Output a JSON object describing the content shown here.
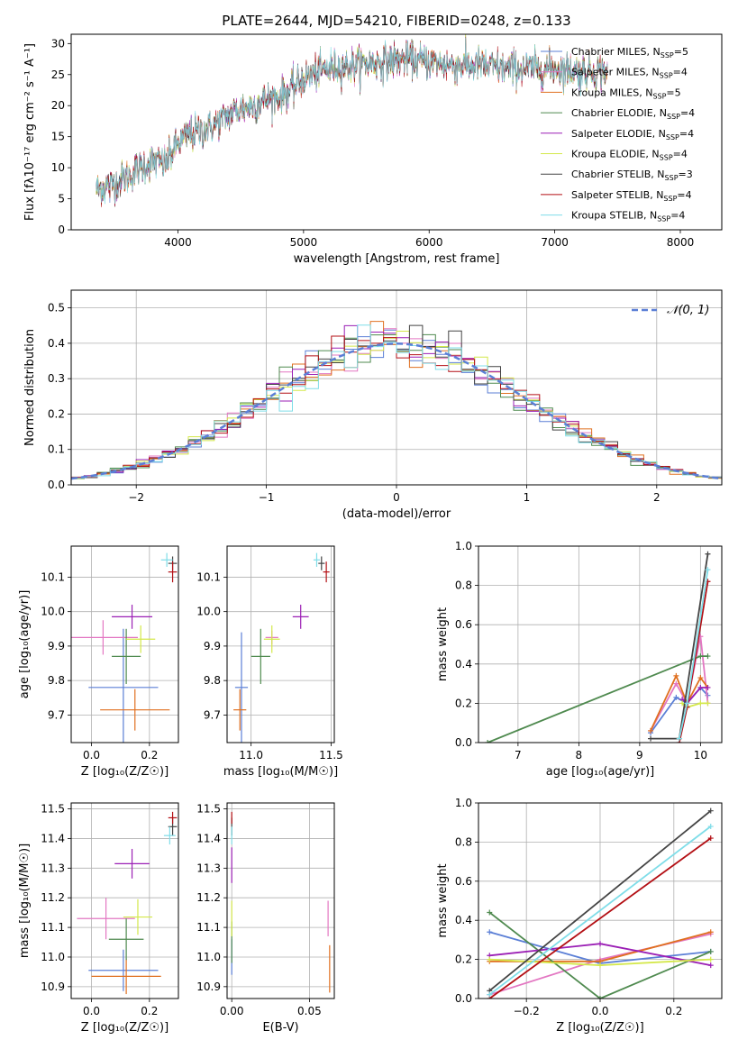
{
  "page_title": "PLATE=2644, MJD=54210, FIBERID=0248, z=0.133",
  "colors": {
    "Chabrier MILES": "#5b7fd6",
    "Salpeter MILES": "#e377c2",
    "Kroupa MILES": "#e07020",
    "Chabrier ELODIE": "#4f8a4f",
    "Salpeter ELODIE": "#9b1fb5",
    "Kroupa ELODIE": "#d4e84a",
    "Chabrier STELIB": "#444444",
    "Salpeter STELIB": "#b30f14",
    "Kroupa STELIB": "#7fdde8"
  },
  "chart_data": [
    {
      "id": "spectrum",
      "type": "line",
      "title": "PLATE=2644, MJD=54210, FIBERID=0248, z=0.133",
      "xlabel": "wavelength [Angstrom, rest frame]",
      "ylabel": "Flux [fλ10⁻¹⁷ erg cm⁻² s⁻¹ A⁻¹]",
      "xlim": [
        3150,
        8330
      ],
      "ylim": [
        0,
        31.5
      ],
      "xticks": [
        "4000",
        "5000",
        "6000",
        "7000",
        "8000"
      ],
      "yticks": [
        "0",
        "5",
        "10",
        "15",
        "20",
        "25",
        "30"
      ],
      "legend_position": "top-right",
      "grid": false,
      "series": [
        {
          "name": "Chabrier MILES, N_SSP=5",
          "legend": "Chabrier MILES, N",
          "sub": "SSP",
          "suffix": "=5"
        },
        {
          "name": "Salpeter MILES, N_SSP=4",
          "legend": "Salpeter MILES, N",
          "sub": "SSP",
          "suffix": "=4"
        },
        {
          "name": "Kroupa MILES, N_SSP=5",
          "legend": "Kroupa MILES, N",
          "sub": "SSP",
          "suffix": "=5"
        },
        {
          "name": "Chabrier ELODIE, N_SSP=4",
          "legend": "Chabrier ELODIE, N",
          "sub": "SSP",
          "suffix": "=4"
        },
        {
          "name": "Salpeter ELODIE, N_SSP=4",
          "legend": "Salpeter ELODIE, N",
          "sub": "SSP",
          "suffix": "=4"
        },
        {
          "name": "Kroupa ELODIE, N_SSP=4",
          "legend": "Kroupa ELODIE, N",
          "sub": "SSP",
          "suffix": "=4"
        },
        {
          "name": "Chabrier STELIB, N_SSP=3",
          "legend": "Chabrier STELIB, N",
          "sub": "SSP",
          "suffix": "=3"
        },
        {
          "name": "Salpeter STELIB, N_SSP=4",
          "legend": "Salpeter STELIB, N",
          "sub": "SSP",
          "suffix": "=4"
        },
        {
          "name": "Kroupa STELIB, N_SSP=4",
          "legend": "Kroupa STELIB, N",
          "sub": "SSP",
          "suffix": "=4"
        }
      ],
      "continuum": {
        "x": [
          3350,
          3500,
          3600,
          3700,
          3800,
          3900,
          4000,
          4100,
          4200,
          4300,
          4400,
          4500,
          4600,
          4700,
          4800,
          4900,
          5000,
          5200,
          5400,
          5600,
          5800,
          6000,
          6200,
          6400,
          6600,
          6800,
          7000,
          7200,
          7400
        ],
        "y": [
          6.5,
          7.5,
          8.5,
          10.0,
          11.0,
          10.5,
          14.0,
          15.5,
          16.0,
          17.0,
          18.5,
          19.5,
          20.0,
          21.0,
          21.5,
          22.5,
          24.5,
          26.0,
          26.5,
          27.0,
          27.5,
          27.0,
          26.5,
          26.5,
          26.0,
          26.0,
          26.0,
          25.5,
          25.5
        ]
      }
    },
    {
      "id": "residuals",
      "type": "bar",
      "xlabel": "(data-model)/error",
      "ylabel": "Normed distribution",
      "xlim": [
        -2.5,
        2.5
      ],
      "ylim": [
        0,
        0.55
      ],
      "xticks": [
        "−2",
        "−1",
        "0",
        "1",
        "2"
      ],
      "yticks": [
        "0.0",
        "0.1",
        "0.2",
        "0.3",
        "0.4",
        "0.5"
      ],
      "legend": "𝒩(0, 1)",
      "legend_position": "top-right",
      "grid": true,
      "bin_width": 0.1,
      "reference": "N(0,1) gaussian"
    },
    {
      "id": "age_vs_Z",
      "type": "scatter",
      "xlabel": "Z [log₁₀(Z/Z☉)]",
      "ylabel": "age  [log₁₀(age/yr)]",
      "xlim": [
        -0.07,
        0.3
      ],
      "ylim": [
        9.62,
        10.19
      ],
      "xticks": [
        "0.0",
        "0.2"
      ],
      "yticks": [
        "9.7",
        "9.8",
        "9.9",
        "10.0",
        "10.1"
      ],
      "grid": true,
      "points": [
        {
          "series": "Chabrier MILES",
          "x": 0.11,
          "y": 9.78,
          "xerr": 0.12,
          "yerr": 0.17
        },
        {
          "series": "Salpeter MILES",
          "x": 0.04,
          "y": 9.925,
          "xerr": 0.12,
          "yerr": 0.05
        },
        {
          "series": "Kroupa MILES",
          "x": 0.15,
          "y": 9.715,
          "xerr": 0.12,
          "yerr": 0.06
        },
        {
          "series": "Chabrier ELODIE",
          "x": 0.12,
          "y": 9.87,
          "xerr": 0.05,
          "yerr": 0.08
        },
        {
          "series": "Salpeter ELODIE",
          "x": 0.14,
          "y": 9.985,
          "xerr": 0.07,
          "yerr": 0.035
        },
        {
          "series": "Kroupa ELODIE",
          "x": 0.17,
          "y": 9.92,
          "xerr": 0.05,
          "yerr": 0.04
        },
        {
          "series": "Chabrier STELIB",
          "x": 0.28,
          "y": 10.14,
          "xerr": 0.015,
          "yerr": 0.02
        },
        {
          "series": "Salpeter STELIB",
          "x": 0.28,
          "y": 10.115,
          "xerr": 0.015,
          "yerr": 0.03
        },
        {
          "series": "Kroupa STELIB",
          "x": 0.26,
          "y": 10.15,
          "xerr": 0.02,
          "yerr": 0.02
        }
      ]
    },
    {
      "id": "age_vs_mass",
      "type": "scatter",
      "xlabel": "mass [log₁₀(M/M☉)]",
      "ylabel": "",
      "xlim": [
        10.85,
        11.52
      ],
      "ylim": [
        9.62,
        10.19
      ],
      "xticks": [
        "11.0",
        "11.5"
      ],
      "yticks": [
        "9.7",
        "9.8",
        "9.9",
        "10.0",
        "10.1"
      ],
      "grid": true,
      "points": [
        {
          "series": "Chabrier MILES",
          "x": 10.94,
          "y": 9.78,
          "xerr": 0.04,
          "yerr": 0.16
        },
        {
          "series": "Salpeter MILES",
          "x": 11.13,
          "y": 9.925,
          "xerr": 0.04,
          "yerr": 0.02
        },
        {
          "series": "Kroupa MILES",
          "x": 10.93,
          "y": 9.715,
          "xerr": 0.04,
          "yerr": 0.06
        },
        {
          "series": "Chabrier ELODIE",
          "x": 11.06,
          "y": 9.87,
          "xerr": 0.06,
          "yerr": 0.08
        },
        {
          "series": "Salpeter ELODIE",
          "x": 11.31,
          "y": 9.985,
          "xerr": 0.05,
          "yerr": 0.035
        },
        {
          "series": "Kroupa ELODIE",
          "x": 11.13,
          "y": 9.92,
          "xerr": 0.05,
          "yerr": 0.04
        },
        {
          "series": "Chabrier STELIB",
          "x": 11.44,
          "y": 10.14,
          "xerr": 0.02,
          "yerr": 0.02
        },
        {
          "series": "Salpeter STELIB",
          "x": 11.47,
          "y": 10.115,
          "xerr": 0.02,
          "yerr": 0.03
        },
        {
          "series": "Kroupa STELIB",
          "x": 11.41,
          "y": 10.15,
          "xerr": 0.02,
          "yerr": 0.02
        }
      ]
    },
    {
      "id": "weight_vs_age",
      "type": "line",
      "xlabel": "age  [log₁₀(age/yr)]",
      "ylabel": "mass weight",
      "xlim": [
        6.35,
        10.35
      ],
      "ylim": [
        0,
        1.0
      ],
      "xticks": [
        "7",
        "8",
        "9",
        "10"
      ],
      "yticks": [
        "0.0",
        "0.2",
        "0.4",
        "0.6",
        "0.8",
        "1.0"
      ],
      "grid": true,
      "series": [
        {
          "name": "Chabrier MILES",
          "x": [
            9.18,
            9.6,
            9.78,
            10.0,
            10.12
          ],
          "y": [
            0.05,
            0.23,
            0.2,
            0.28,
            0.24
          ]
        },
        {
          "name": "Salpeter MILES",
          "x": [
            9.18,
            9.6,
            9.78,
            10.0,
            10.12
          ],
          "y": [
            0.06,
            0.3,
            0.2,
            0.54,
            0.2
          ]
        },
        {
          "name": "Kroupa MILES",
          "x": [
            9.18,
            9.6,
            9.78,
            10.0,
            10.12
          ],
          "y": [
            0.06,
            0.34,
            0.2,
            0.33,
            0.28
          ]
        },
        {
          "name": "Chabrier ELODIE",
          "x": [
            6.5,
            10.0,
            10.12
          ],
          "y": [
            0.0,
            0.44,
            0.44
          ]
        },
        {
          "name": "Salpeter ELODIE",
          "x": [
            9.7,
            9.78,
            10.0,
            10.12
          ],
          "y": [
            0.22,
            0.2,
            0.28,
            0.28
          ]
        },
        {
          "name": "Kroupa ELODIE",
          "x": [
            9.7,
            9.78,
            10.0,
            10.12
          ],
          "y": [
            0.2,
            0.18,
            0.2,
            0.2
          ]
        },
        {
          "name": "Chabrier STELIB",
          "x": [
            9.18,
            9.65,
            10.12
          ],
          "y": [
            0.02,
            0.02,
            0.96
          ]
        },
        {
          "name": "Salpeter STELIB",
          "x": [
            9.65,
            9.78,
            10.12
          ],
          "y": [
            0.0,
            0.18,
            0.82
          ]
        },
        {
          "name": "Kroupa STELIB",
          "x": [
            9.65,
            9.78,
            10.12
          ],
          "y": [
            0.02,
            0.2,
            0.88
          ]
        }
      ]
    },
    {
      "id": "mass_vs_Z",
      "type": "scatter",
      "xlabel": "Z [log₁₀(Z/Z☉)]",
      "ylabel": "mass [log₁₀(M/M☉)]",
      "xlim": [
        -0.07,
        0.3
      ],
      "ylim": [
        10.86,
        11.52
      ],
      "xticks": [
        "0.0",
        "0.2"
      ],
      "yticks": [
        "10.9",
        "11.0",
        "11.1",
        "11.2",
        "11.3",
        "11.4",
        "11.5"
      ],
      "grid": true,
      "points": [
        {
          "series": "Chabrier MILES",
          "x": 0.11,
          "y": 10.955,
          "xerr": 0.12,
          "yerr": 0.07
        },
        {
          "series": "Salpeter MILES",
          "x": 0.05,
          "y": 11.13,
          "xerr": 0.1,
          "yerr": 0.07
        },
        {
          "series": "Kroupa MILES",
          "x": 0.12,
          "y": 10.935,
          "xerr": 0.12,
          "yerr": 0.06
        },
        {
          "series": "Chabrier ELODIE",
          "x": 0.12,
          "y": 11.06,
          "xerr": 0.06,
          "yerr": 0.07
        },
        {
          "series": "Salpeter ELODIE",
          "x": 0.14,
          "y": 11.315,
          "xerr": 0.06,
          "yerr": 0.05
        },
        {
          "series": "Kroupa ELODIE",
          "x": 0.16,
          "y": 11.135,
          "xerr": 0.05,
          "yerr": 0.06
        },
        {
          "series": "Chabrier STELIB",
          "x": 0.28,
          "y": 11.44,
          "xerr": 0.015,
          "yerr": 0.03
        },
        {
          "series": "Salpeter STELIB",
          "x": 0.28,
          "y": 11.47,
          "xerr": 0.015,
          "yerr": 0.02
        },
        {
          "series": "Kroupa STELIB",
          "x": 0.27,
          "y": 11.41,
          "xerr": 0.02,
          "yerr": 0.03
        }
      ]
    },
    {
      "id": "mass_vs_ebv",
      "type": "scatter",
      "xlabel": "E(B-V)",
      "ylabel": "",
      "xlim": [
        -0.003,
        0.066
      ],
      "ylim": [
        10.86,
        11.52
      ],
      "xticks": [
        "0.00",
        "0.05"
      ],
      "yticks": [
        "10.9",
        "11.0",
        "11.1",
        "11.2",
        "11.3",
        "11.4",
        "11.5"
      ],
      "grid": true,
      "points": [
        {
          "series": "Chabrier MILES",
          "x": 0.0,
          "y": 11.0,
          "xerr": 0.0,
          "yerr": 0.06
        },
        {
          "series": "Salpeter MILES",
          "x": 0.062,
          "y": 11.13,
          "xerr": 0.0,
          "yerr": 0.06
        },
        {
          "series": "Kroupa MILES",
          "x": 0.063,
          "y": 10.96,
          "xerr": 0.0,
          "yerr": 0.08
        },
        {
          "series": "Chabrier ELODIE",
          "x": 0.0,
          "y": 11.05,
          "xerr": 0.0,
          "yerr": 0.07
        },
        {
          "series": "Salpeter ELODIE",
          "x": 0.0,
          "y": 11.31,
          "xerr": 0.0,
          "yerr": 0.06
        },
        {
          "series": "Kroupa ELODIE",
          "x": 0.0,
          "y": 11.13,
          "xerr": 0.0,
          "yerr": 0.06
        },
        {
          "series": "Chabrier STELIB",
          "x": 0.0,
          "y": 11.44,
          "xerr": 0.0,
          "yerr": 0.03
        },
        {
          "series": "Salpeter STELIB",
          "x": 0.0,
          "y": 11.47,
          "xerr": 0.0,
          "yerr": 0.02
        },
        {
          "series": "Kroupa STELIB",
          "x": 0.0,
          "y": 11.41,
          "xerr": 0.0,
          "yerr": 0.03
        }
      ]
    },
    {
      "id": "weight_vs_Z",
      "type": "line",
      "xlabel": "Z [log₁₀(Z/Z☉)]",
      "ylabel": "mass weight",
      "xlim": [
        -0.33,
        0.33
      ],
      "ylim": [
        0,
        1.0
      ],
      "xticks": [
        "−0.2",
        "0.0",
        "0.2"
      ],
      "yticks": [
        "0.0",
        "0.2",
        "0.4",
        "0.6",
        "0.8",
        "1.0"
      ],
      "grid": true,
      "series": [
        {
          "name": "Chabrier MILES",
          "x": [
            -0.3,
            0.0,
            0.3
          ],
          "y": [
            0.34,
            0.18,
            0.24
          ]
        },
        {
          "name": "Salpeter MILES",
          "x": [
            -0.3,
            0.0,
            0.3
          ],
          "y": [
            0.02,
            0.2,
            0.33
          ]
        },
        {
          "name": "Kroupa MILES",
          "x": [
            -0.3,
            0.0,
            0.3
          ],
          "y": [
            0.19,
            0.19,
            0.34
          ]
        },
        {
          "name": "Chabrier ELODIE",
          "x": [
            -0.3,
            0.0,
            0.3
          ],
          "y": [
            0.44,
            0.0,
            0.24
          ]
        },
        {
          "name": "Salpeter ELODIE",
          "x": [
            -0.3,
            0.0,
            0.3
          ],
          "y": [
            0.22,
            0.28,
            0.17
          ]
        },
        {
          "name": "Kroupa ELODIE",
          "x": [
            -0.3,
            0.0,
            0.3
          ],
          "y": [
            0.2,
            0.17,
            0.2
          ]
        },
        {
          "name": "Chabrier STELIB",
          "x": [
            -0.3,
            0.3
          ],
          "y": [
            0.04,
            0.96
          ]
        },
        {
          "name": "Salpeter STELIB",
          "x": [
            -0.3,
            0.3
          ],
          "y": [
            0.0,
            0.82
          ]
        },
        {
          "name": "Kroupa STELIB",
          "x": [
            -0.3,
            0.3
          ],
          "y": [
            0.02,
            0.88
          ]
        }
      ]
    }
  ]
}
